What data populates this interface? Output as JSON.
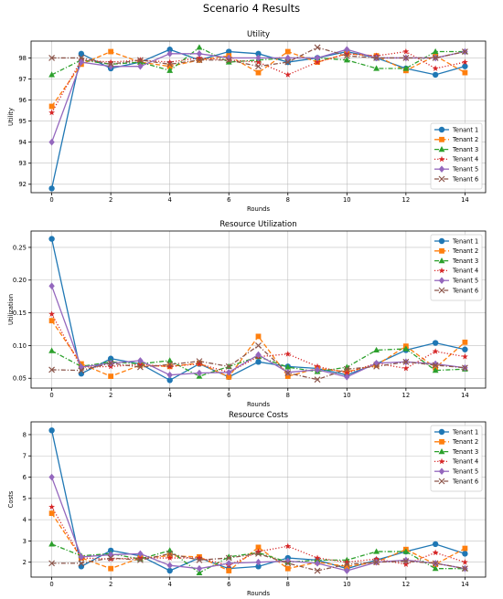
{
  "figure_title": "Scenario 4 Results",
  "chart_data": [
    {
      "type": "line",
      "title": "Utility",
      "xlabel": "Rounds",
      "ylabel": "Utility",
      "xlim": [
        -0.7,
        14.7
      ],
      "ylim": [
        91.6,
        98.8
      ],
      "xticks": [
        0,
        2,
        4,
        6,
        8,
        10,
        12,
        14
      ],
      "yticks": [
        92,
        93,
        94,
        95,
        96,
        97,
        98
      ],
      "grid": true,
      "legend_position": "lower-right",
      "x": [
        0,
        1,
        2,
        3,
        4,
        5,
        6,
        7,
        8,
        9,
        10,
        11,
        12,
        13,
        14
      ],
      "series": [
        {
          "name": "Tenant 1",
          "color": "#1f77b4",
          "linestyle": "solid",
          "marker": "circle",
          "values": [
            91.8,
            98.2,
            97.5,
            97.8,
            98.4,
            97.9,
            98.3,
            98.2,
            97.8,
            98.0,
            98.3,
            98.0,
            97.5,
            97.2,
            97.6
          ]
        },
        {
          "name": "Tenant 2",
          "color": "#ff7f0e",
          "linestyle": "dashed",
          "marker": "square",
          "values": [
            95.7,
            97.7,
            98.3,
            97.8,
            97.6,
            97.9,
            98.1,
            97.3,
            98.3,
            97.8,
            98.2,
            98.1,
            97.4,
            98.1,
            97.3
          ]
        },
        {
          "name": "Tenant 3",
          "color": "#2ca02c",
          "linestyle": "dashdot",
          "marker": "triangle",
          "values": [
            97.2,
            97.9,
            97.7,
            97.8,
            97.4,
            98.5,
            97.8,
            97.9,
            98.0,
            98.0,
            97.9,
            97.5,
            97.5,
            98.3,
            98.3
          ]
        },
        {
          "name": "Tenant 4",
          "color": "#d62728",
          "linestyle": "dotted",
          "marker": "star",
          "values": [
            95.4,
            97.9,
            97.8,
            97.9,
            97.8,
            98.0,
            97.9,
            97.8,
            97.2,
            97.8,
            98.2,
            98.1,
            98.3,
            97.5,
            97.8
          ]
        },
        {
          "name": "Tenant 5",
          "color": "#9467bd",
          "linestyle": "solid",
          "marker": "diamond",
          "values": [
            94.0,
            97.8,
            97.6,
            97.6,
            98.2,
            98.2,
            98.0,
            98.0,
            98.0,
            98.0,
            98.4,
            98.0,
            98.0,
            98.0,
            98.3
          ]
        },
        {
          "name": "Tenant 6",
          "color": "#8c564b",
          "linestyle": "dashdot",
          "marker": "x",
          "values": [
            98.0,
            98.0,
            97.7,
            97.9,
            97.7,
            97.9,
            97.9,
            97.6,
            97.8,
            98.5,
            98.1,
            98.0,
            98.0,
            98.0,
            98.3
          ]
        }
      ]
    },
    {
      "type": "line",
      "title": "Resource Utilization",
      "xlabel": "Rounds",
      "ylabel": "Utilization",
      "xlim": [
        -0.7,
        14.7
      ],
      "ylim": [
        0.035,
        0.275
      ],
      "xticks": [
        0,
        2,
        4,
        6,
        8,
        10,
        12,
        14
      ],
      "yticks": [
        0.05,
        0.1,
        0.15,
        0.2,
        0.25
      ],
      "ytick_labels": [
        "0.05",
        "0.10",
        "0.15",
        "0.20",
        "0.25"
      ],
      "grid": true,
      "legend_position": "upper-right",
      "x": [
        0,
        1,
        2,
        3,
        4,
        5,
        6,
        7,
        8,
        9,
        10,
        11,
        12,
        13,
        14
      ],
      "series": [
        {
          "name": "Tenant 1",
          "color": "#1f77b4",
          "linestyle": "solid",
          "marker": "circle",
          "values": [
            0.263,
            0.057,
            0.08,
            0.072,
            0.047,
            0.072,
            0.052,
            0.075,
            0.068,
            0.065,
            0.055,
            0.072,
            0.093,
            0.104,
            0.094
          ]
        },
        {
          "name": "Tenant 2",
          "color": "#ff7f0e",
          "linestyle": "dashed",
          "marker": "square",
          "values": [
            0.138,
            0.072,
            0.053,
            0.07,
            0.068,
            0.073,
            0.052,
            0.114,
            0.053,
            0.065,
            0.06,
            0.07,
            0.099,
            0.066,
            0.105
          ]
        },
        {
          "name": "Tenant 3",
          "color": "#2ca02c",
          "linestyle": "dashdot",
          "marker": "triangle",
          "values": [
            0.092,
            0.068,
            0.075,
            0.072,
            0.077,
            0.053,
            0.068,
            0.083,
            0.067,
            0.06,
            0.067,
            0.093,
            0.095,
            0.062,
            0.064
          ]
        },
        {
          "name": "Tenant 4",
          "color": "#d62728",
          "linestyle": "dotted",
          "marker": "star",
          "values": [
            0.148,
            0.067,
            0.068,
            0.071,
            0.068,
            0.072,
            0.059,
            0.083,
            0.087,
            0.068,
            0.058,
            0.073,
            0.065,
            0.091,
            0.083
          ]
        },
        {
          "name": "Tenant 5",
          "color": "#9467bd",
          "linestyle": "solid",
          "marker": "diamond",
          "values": [
            0.191,
            0.067,
            0.073,
            0.077,
            0.055,
            0.058,
            0.059,
            0.086,
            0.059,
            0.063,
            0.052,
            0.073,
            0.075,
            0.072,
            0.066
          ]
        },
        {
          "name": "Tenant 6",
          "color": "#8c564b",
          "linestyle": "dashdot",
          "marker": "x",
          "values": [
            0.063,
            0.062,
            0.073,
            0.067,
            0.071,
            0.076,
            0.068,
            0.1,
            0.058,
            0.048,
            0.064,
            0.068,
            0.075,
            0.07,
            0.066
          ]
        }
      ]
    },
    {
      "type": "line",
      "title": "Resource Costs",
      "xlabel": "Rounds",
      "ylabel": "Costs",
      "xlim": [
        -0.7,
        14.7
      ],
      "ylim": [
        1.3,
        8.6
      ],
      "xticks": [
        0,
        2,
        4,
        6,
        8,
        10,
        12,
        14
      ],
      "yticks": [
        2,
        3,
        4,
        5,
        6,
        7,
        8
      ],
      "grid": true,
      "legend_position": "upper-right",
      "x": [
        0,
        1,
        2,
        3,
        4,
        5,
        6,
        7,
        8,
        9,
        10,
        11,
        12,
        13,
        14
      ],
      "series": [
        {
          "name": "Tenant 1",
          "color": "#1f77b4",
          "linestyle": "solid",
          "marker": "circle",
          "values": [
            8.2,
            1.8,
            2.55,
            2.3,
            1.6,
            2.2,
            1.7,
            1.8,
            2.2,
            2.1,
            1.7,
            2.1,
            2.5,
            2.85,
            2.4
          ]
        },
        {
          "name": "Tenant 2",
          "color": "#ff7f0e",
          "linestyle": "dashed",
          "marker": "square",
          "values": [
            4.3,
            2.2,
            1.7,
            2.2,
            2.3,
            2.25,
            1.6,
            2.7,
            1.7,
            2.0,
            1.8,
            2.0,
            2.6,
            1.9,
            2.65
          ]
        },
        {
          "name": "Tenant 3",
          "color": "#2ca02c",
          "linestyle": "dashdot",
          "marker": "triangle",
          "values": [
            2.85,
            2.3,
            2.4,
            2.15,
            2.55,
            1.5,
            2.25,
            2.45,
            2.0,
            2.1,
            2.1,
            2.5,
            2.5,
            1.7,
            1.7
          ]
        },
        {
          "name": "Tenant 4",
          "color": "#d62728",
          "linestyle": "dotted",
          "marker": "star",
          "values": [
            4.6,
            2.2,
            2.15,
            2.2,
            2.2,
            2.2,
            1.85,
            2.5,
            2.75,
            2.2,
            2.0,
            2.15,
            1.9,
            2.45,
            2.0
          ]
        },
        {
          "name": "Tenant 5",
          "color": "#9467bd",
          "linestyle": "solid",
          "marker": "diamond",
          "values": [
            6.0,
            2.25,
            2.35,
            2.4,
            1.85,
            1.7,
            1.95,
            2.0,
            2.05,
            1.95,
            1.6,
            2.0,
            2.1,
            1.95,
            1.7
          ]
        },
        {
          "name": "Tenant 6",
          "color": "#8c564b",
          "linestyle": "dashdot",
          "marker": "x",
          "values": [
            1.95,
            1.95,
            2.2,
            2.1,
            2.4,
            2.1,
            2.2,
            2.4,
            1.95,
            1.6,
            1.9,
            2.0,
            2.05,
            1.95,
            1.7
          ]
        }
      ]
    }
  ]
}
